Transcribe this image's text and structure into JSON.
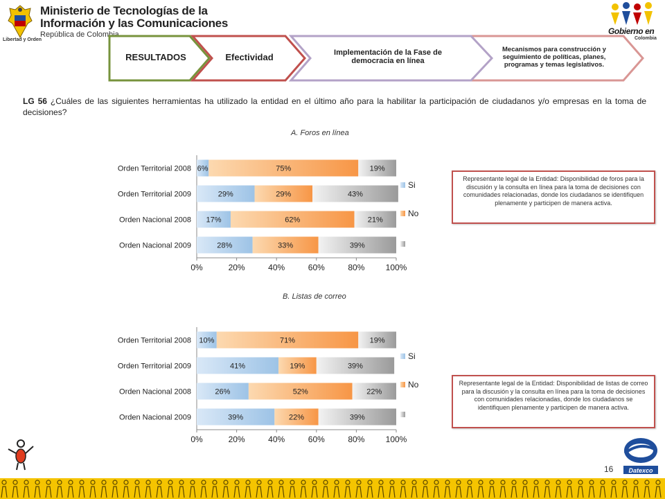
{
  "header": {
    "ministry_line1": "Ministerio de Tecnologías de la",
    "ministry_line2": "Información y las Comunicaciones",
    "ministry_line3": "República de Colombia",
    "ministry_motto": "Libertad y Orden",
    "gobierno_title": "Gobierno en línea",
    "gobierno_sub": "Colombia"
  },
  "steps": [
    {
      "label": "RESULTADOS",
      "color": "#77933c"
    },
    {
      "label": "Efectividad",
      "color": "#c0504d"
    },
    {
      "label": "Implementación de la Fase de democracia en línea",
      "color": "#b3a2c7"
    },
    {
      "label": "Mecanismos para construcción y seguimiento de políticas, planes, programas y temas legislativos.",
      "color": "#d99694"
    }
  ],
  "question": {
    "code": "LG 56",
    "text": "¿Cuáles de las siguientes herramientas ha utilizado la entidad en el último año para la habilitar la participación de ciudadanos y/o empresas en la toma de decisiones?"
  },
  "chart_data": [
    {
      "type": "bar",
      "orientation": "horizontal-stacked-100",
      "title": "A. Foros en línea",
      "categories": [
        "Orden Territorial 2008",
        "Orden Territorial 2009",
        "Orden Nacional 2008",
        "Orden Nacional 2009"
      ],
      "series": [
        {
          "name": "Si",
          "values": [
            6,
            29,
            17,
            28
          ],
          "color": "#9dc3e6"
        },
        {
          "name": "No",
          "values": [
            75,
            29,
            62,
            33
          ],
          "color": "#f79646"
        },
        {
          "name": "",
          "values": [
            19,
            43,
            21,
            39
          ],
          "color": "#a6a6a6"
        }
      ],
      "data_labels": [
        [
          "6%",
          "75%",
          "19%"
        ],
        [
          "29%",
          "29%",
          "43%"
        ],
        [
          "17%",
          "62%",
          "21%"
        ],
        [
          "28%",
          "33%",
          "39%"
        ]
      ],
      "xticks": [
        "0%",
        "20%",
        "40%",
        "60%",
        "80%",
        "100%"
      ],
      "xlim": [
        0,
        100
      ],
      "legend": [
        "Si",
        "No",
        ""
      ]
    },
    {
      "type": "bar",
      "orientation": "horizontal-stacked-100",
      "title": "B.  Listas de correo",
      "categories": [
        "Orden Territorial 2008",
        "Orden Territorial 2009",
        "Orden Nacional 2008",
        "Orden Nacional 2009"
      ],
      "series": [
        {
          "name": "Si",
          "values": [
            10,
            41,
            26,
            39
          ],
          "color": "#9dc3e6"
        },
        {
          "name": "No",
          "values": [
            71,
            19,
            52,
            22
          ],
          "color": "#f79646"
        },
        {
          "name": "",
          "values": [
            19,
            39,
            22,
            39
          ],
          "color": "#a6a6a6"
        }
      ],
      "data_labels": [
        [
          "10%",
          "71%",
          "19%"
        ],
        [
          "41%",
          "19%",
          "39%"
        ],
        [
          "26%",
          "52%",
          "22%"
        ],
        [
          "39%",
          "22%",
          "39%"
        ]
      ],
      "xticks": [
        "0%",
        "20%",
        "40%",
        "60%",
        "80%",
        "100%"
      ],
      "xlim": [
        0,
        100
      ],
      "legend": [
        "Si",
        "No",
        ""
      ]
    }
  ],
  "notes": {
    "a": "Representante legal de la Entidad: Disponibilidad de foros para la discusión y la consulta en línea para la toma de decisiones con comunidades relacionadas, donde los ciudadanos se identifiquen plenamente y participen de manera activa.",
    "b": "Representante legal de la Entidad: Disponibilidad de listas de correo para la discusión y la consulta en línea para la toma de decisiones con comunidades relacionadas, donde los ciudadanos se identifiquen plenamente y participen de manera activa."
  },
  "footer": {
    "page_number": "16",
    "datexco": "Datexco"
  }
}
